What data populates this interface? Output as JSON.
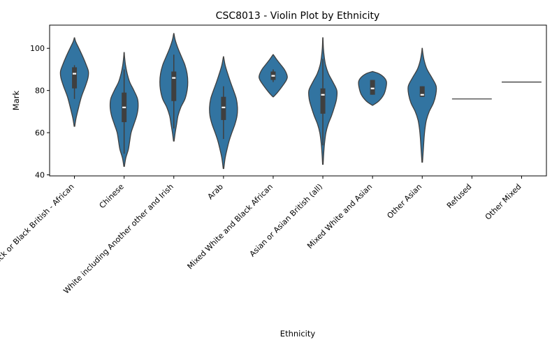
{
  "chart_data": {
    "type": "violin",
    "title": "CSC8013 - Violin Plot by Ethnicity",
    "xlabel": "Ethnicity",
    "ylabel": "Mark",
    "ylim": [
      39.5,
      111
    ],
    "yticks": [
      40,
      60,
      80,
      100
    ],
    "grid": false,
    "legend": "none",
    "color": "#3274a1",
    "edge_color": "#3f3f3f",
    "categories": [
      "Black or Black British - African",
      "Chinese",
      "White including Another other and Irish",
      "Arab",
      "Mixed White and Black African",
      "Asian or Asian British (all)",
      "Mixed White and Asian",
      "Other Asian",
      "Refused",
      "Other Mixed"
    ],
    "violins": [
      {
        "range": [
          63,
          105
        ],
        "q1": 81,
        "median": 88,
        "q3": 91,
        "whisker": [
          76,
          92
        ],
        "density": [
          [
            63,
            0.02
          ],
          [
            67,
            0.12
          ],
          [
            72,
            0.3
          ],
          [
            77,
            0.5
          ],
          [
            82,
            0.78
          ],
          [
            86,
            0.97
          ],
          [
            89,
            1
          ],
          [
            92,
            0.85
          ],
          [
            96,
            0.6
          ],
          [
            100,
            0.32
          ],
          [
            103,
            0.1
          ],
          [
            105,
            0.01
          ]
        ]
      },
      {
        "range": [
          44,
          98
        ],
        "q1": 65,
        "median": 72,
        "q3": 79,
        "whisker": [
          50,
          90
        ],
        "density": [
          [
            44,
            0.02
          ],
          [
            48,
            0.12
          ],
          [
            52,
            0.3
          ],
          [
            56,
            0.4
          ],
          [
            60,
            0.5
          ],
          [
            64,
            0.7
          ],
          [
            68,
            0.9
          ],
          [
            72,
            1
          ],
          [
            76,
            0.96
          ],
          [
            80,
            0.7
          ],
          [
            84,
            0.4
          ],
          [
            88,
            0.22
          ],
          [
            92,
            0.1
          ],
          [
            96,
            0.03
          ],
          [
            98,
            0.01
          ]
        ]
      },
      {
        "range": [
          56,
          107
        ],
        "q1": 75,
        "median": 86,
        "q3": 89,
        "whisker": [
          62,
          97
        ],
        "density": [
          [
            56,
            0.02
          ],
          [
            60,
            0.1
          ],
          [
            64,
            0.2
          ],
          [
            68,
            0.3
          ],
          [
            72,
            0.5
          ],
          [
            76,
            0.8
          ],
          [
            80,
            0.95
          ],
          [
            84,
            1
          ],
          [
            88,
            0.95
          ],
          [
            92,
            0.8
          ],
          [
            96,
            0.55
          ],
          [
            100,
            0.3
          ],
          [
            104,
            0.1
          ],
          [
            107,
            0.01
          ]
        ]
      },
      {
        "range": [
          43,
          96
        ],
        "q1": 66,
        "median": 72,
        "q3": 77,
        "whisker": [
          57,
          82
        ],
        "density": [
          [
            43,
            0.02
          ],
          [
            48,
            0.12
          ],
          [
            52,
            0.25
          ],
          [
            56,
            0.4
          ],
          [
            60,
            0.6
          ],
          [
            64,
            0.82
          ],
          [
            68,
            0.97
          ],
          [
            72,
            1
          ],
          [
            76,
            0.92
          ],
          [
            80,
            0.72
          ],
          [
            84,
            0.5
          ],
          [
            88,
            0.3
          ],
          [
            92,
            0.12
          ],
          [
            96,
            0.01
          ]
        ]
      },
      {
        "range": [
          77,
          97
        ],
        "q1": 85,
        "median": 87,
        "q3": 89,
        "whisker": [
          84,
          90
        ],
        "density": [
          [
            77,
            0.02
          ],
          [
            79,
            0.3
          ],
          [
            82,
            0.65
          ],
          [
            85,
            0.95
          ],
          [
            87,
            1
          ],
          [
            90,
            0.8
          ],
          [
            93,
            0.45
          ],
          [
            95,
            0.22
          ],
          [
            97,
            0.01
          ]
        ]
      },
      {
        "range": [
          45,
          105
        ],
        "q1": 69,
        "median": 78,
        "q3": 81,
        "whisker": [
          54,
          95
        ],
        "density": [
          [
            45,
            0.02
          ],
          [
            50,
            0.06
          ],
          [
            55,
            0.12
          ],
          [
            60,
            0.22
          ],
          [
            64,
            0.38
          ],
          [
            68,
            0.62
          ],
          [
            72,
            0.82
          ],
          [
            76,
            0.98
          ],
          [
            80,
            1
          ],
          [
            84,
            0.72
          ],
          [
            88,
            0.4
          ],
          [
            92,
            0.2
          ],
          [
            96,
            0.1
          ],
          [
            100,
            0.04
          ],
          [
            105,
            0.01
          ]
        ]
      },
      {
        "range": [
          73,
          89
        ],
        "q1": 78,
        "median": 81,
        "q3": 85,
        "whisker": [
          78,
          85
        ],
        "density": [
          [
            73,
            0.02
          ],
          [
            75,
            0.45
          ],
          [
            78,
            0.8
          ],
          [
            81,
            0.95
          ],
          [
            84,
            1
          ],
          [
            86,
            0.85
          ],
          [
            88,
            0.45
          ],
          [
            89,
            0.01
          ]
        ]
      },
      {
        "range": [
          46,
          100
        ],
        "q1": 77,
        "median": 78,
        "q3": 82,
        "whisker": [
          77,
          82
        ],
        "density": [
          [
            46,
            0.02
          ],
          [
            50,
            0.06
          ],
          [
            54,
            0.1
          ],
          [
            58,
            0.14
          ],
          [
            62,
            0.2
          ],
          [
            66,
            0.3
          ],
          [
            70,
            0.5
          ],
          [
            74,
            0.8
          ],
          [
            78,
            0.97
          ],
          [
            82,
            1
          ],
          [
            86,
            0.7
          ],
          [
            90,
            0.35
          ],
          [
            94,
            0.15
          ],
          [
            98,
            0.04
          ],
          [
            100,
            0.01
          ]
        ]
      },
      {
        "value": 76
      },
      {
        "value": 84
      }
    ]
  }
}
